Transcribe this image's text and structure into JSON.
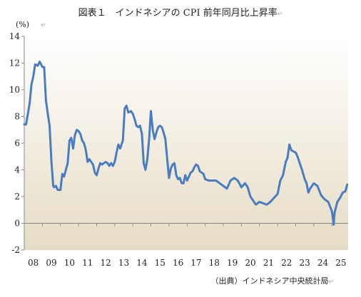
{
  "chart_data": {
    "type": "line",
    "title": "図表１　インドネシアの CPI 前年同月比上昇率",
    "title_mark": "↵",
    "unit": "(%)",
    "unit_mark": "↵",
    "source": "（出典）インドネシア中央統計局",
    "source_mark": "↵",
    "ylim": [
      -2,
      14
    ],
    "yticks": [
      "-2",
      "0",
      "2",
      "4",
      "6",
      "8",
      "10",
      "12",
      "14"
    ],
    "xlim": [
      2008.0,
      2025.9
    ],
    "xticks": [
      "08",
      "09",
      "10",
      "11",
      "12",
      "13",
      "14",
      "15",
      "16",
      "17",
      "18",
      "19",
      "20",
      "21",
      "22",
      "23",
      "24",
      "25"
    ],
    "grid": false,
    "line_color": "#4a7cc0",
    "bg_top": "#ffffff",
    "bg_bottom": "#e6dcc4",
    "series": [
      {
        "x": [
          2008.0,
          2008.1,
          2008.2,
          2008.3,
          2008.4,
          2008.5,
          2008.6,
          2008.75,
          2008.85,
          2009.0,
          2009.1,
          2009.2,
          2009.3,
          2009.4,
          2009.5,
          2009.6,
          2009.65,
          2009.75,
          2009.85,
          2010.0,
          2010.1,
          2010.2,
          2010.3,
          2010.4,
          2010.5,
          2010.6,
          2010.7,
          2010.8,
          2010.9,
          2011.0,
          2011.1,
          2011.2,
          2011.3,
          2011.4,
          2011.5,
          2011.6,
          2011.7,
          2011.8,
          2011.9,
          2012.0,
          2012.1,
          2012.2,
          2012.3,
          2012.4,
          2012.5,
          2012.6,
          2012.7,
          2012.8,
          2012.9,
          2013.0,
          2013.1,
          2013.2,
          2013.3,
          2013.45,
          2013.55,
          2013.65,
          2013.75,
          2013.9,
          2014.0,
          2014.1,
          2014.2,
          2014.3,
          2014.4,
          2014.5,
          2014.6,
          2014.7,
          2014.8,
          2014.9,
          2015.0,
          2015.1,
          2015.2,
          2015.3,
          2015.4,
          2015.5,
          2015.6,
          2015.7,
          2015.8,
          2015.9,
          2016.0,
          2016.1,
          2016.2,
          2016.3,
          2016.4,
          2016.5,
          2016.6,
          2016.7,
          2016.8,
          2016.9,
          2017.0,
          2017.1,
          2017.2,
          2017.3,
          2017.4,
          2017.5,
          2017.6,
          2017.7,
          2017.8,
          2017.9,
          2018.0,
          2018.2,
          2018.4,
          2018.6,
          2018.8,
          2019.0,
          2019.2,
          2019.4,
          2019.6,
          2019.8,
          2020.0,
          2020.2,
          2020.35,
          2020.5,
          2020.65,
          2020.8,
          2021.0,
          2021.2,
          2021.4,
          2021.6,
          2021.8,
          2022.0,
          2022.15,
          2022.3,
          2022.45,
          2022.55,
          2022.65,
          2022.75,
          2022.85,
          2023.0,
          2023.1,
          2023.2,
          2023.35,
          2023.5,
          2023.6,
          2023.7,
          2023.8,
          2024.0,
          2024.2,
          2024.4,
          2024.6,
          2024.8,
          2025.0,
          2025.1,
          2025.15,
          2025.3,
          2025.45,
          2025.6,
          2025.75,
          2025.85
        ],
        "y": [
          7.4,
          7.4,
          8.2,
          9.0,
          10.4,
          11.0,
          11.9,
          11.8,
          12.1,
          11.7,
          11.7,
          9.2,
          8.2,
          7.3,
          4.7,
          2.8,
          2.7,
          2.8,
          2.5,
          2.5,
          3.7,
          3.5,
          4.0,
          4.5,
          6.2,
          6.4,
          5.6,
          6.6,
          7.0,
          6.9,
          6.7,
          6.2,
          6.0,
          5.5,
          4.6,
          4.8,
          4.6,
          4.4,
          3.8,
          3.6,
          4.1,
          4.5,
          4.4,
          4.5,
          4.6,
          4.5,
          4.3,
          4.5,
          4.3,
          4.6,
          5.3,
          5.9,
          5.6,
          6.2,
          8.6,
          8.8,
          8.3,
          8.4,
          8.2,
          7.8,
          7.3,
          7.2,
          7.3,
          6.7,
          4.5,
          4.0,
          4.8,
          6.3,
          8.4,
          7.0,
          6.3,
          6.8,
          7.2,
          7.3,
          7.2,
          6.8,
          6.3,
          4.8,
          3.4,
          4.1,
          4.4,
          4.5,
          3.6,
          3.3,
          3.4,
          3.0,
          3.0,
          3.6,
          3.2,
          3.5,
          3.8,
          3.9,
          4.2,
          4.4,
          4.3,
          3.9,
          3.8,
          3.7,
          3.3,
          3.2,
          3.2,
          3.2,
          3.0,
          2.8,
          2.6,
          3.2,
          3.4,
          3.2,
          2.7,
          3.0,
          2.7,
          2.0,
          1.7,
          1.4,
          1.6,
          1.5,
          1.4,
          1.6,
          1.9,
          2.2,
          3.2,
          3.6,
          4.6,
          4.9,
          5.9,
          5.5,
          5.4,
          5.3,
          5.0,
          4.6,
          4.0,
          3.3,
          3.0,
          2.3,
          2.6,
          3.0,
          2.8,
          2.1,
          1.8,
          1.6,
          0.9,
          -0.1,
          0.8,
          1.6,
          1.9,
          2.3,
          2.4,
          2.9
        ]
      }
    ]
  }
}
